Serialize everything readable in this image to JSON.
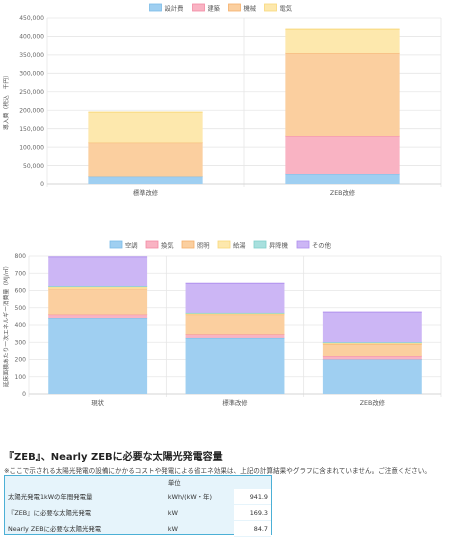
{
  "charts": [
    {
      "type": "bar",
      "stacked": true,
      "legend_position": "top",
      "grid": true,
      "categories": [
        "標準改修",
        "ZEB改修"
      ],
      "ylabel": "導入費（税込　千円）",
      "ylim": [
        0,
        450000
      ],
      "yticks": [
        "0",
        "50,000",
        "100,000",
        "150,000",
        "200,000",
        "250,000",
        "300,000",
        "350,000",
        "400,000",
        "450,000"
      ],
      "series": [
        {
          "name": "設計費",
          "values": [
            20000,
            27000
          ],
          "color": "#9fcff1",
          "border": "#7bbbe8"
        },
        {
          "name": "建築",
          "values": [
            0,
            103000
          ],
          "color": "#f9b3c3",
          "border": "#f28aa3"
        },
        {
          "name": "機械",
          "values": [
            92000,
            225000
          ],
          "color": "#fbcf9f",
          "border": "#f6b06a"
        },
        {
          "name": "電気",
          "values": [
            83000,
            65000
          ],
          "color": "#fde8ad",
          "border": "#f8d77a"
        }
      ]
    },
    {
      "type": "bar",
      "stacked": true,
      "legend_position": "top",
      "grid": true,
      "categories": [
        "現状",
        "標準改修",
        "ZEB改修"
      ],
      "ylabel": "延床面積あたり一次エネルギー消費量（MJ/㎡）",
      "ylim": [
        0,
        800
      ],
      "yticks": [
        "0",
        "100",
        "200",
        "300",
        "400",
        "500",
        "600",
        "700",
        "800"
      ],
      "series": [
        {
          "name": "空調",
          "values": [
            440,
            325,
            200
          ],
          "color": "#9fcff1",
          "border": "#7bbbe8"
        },
        {
          "name": "換気",
          "values": [
            20,
            20,
            20
          ],
          "color": "#f9b3c3",
          "border": "#f28aa3"
        },
        {
          "name": "照明",
          "values": [
            150,
            115,
            70
          ],
          "color": "#fbcf9f",
          "border": "#f6b06a"
        },
        {
          "name": "給湯",
          "values": [
            10,
            5,
            5
          ],
          "color": "#fde8ad",
          "border": "#f8d77a"
        },
        {
          "name": "昇降機",
          "values": [
            5,
            5,
            5
          ],
          "color": "#a8e0de",
          "border": "#7fcfcb"
        },
        {
          "name": "その他",
          "values": [
            170,
            172,
            175
          ],
          "color": "#ccb6f5",
          "border": "#b08fee"
        }
      ]
    }
  ],
  "solar": {
    "title": "『ZEB』、Nearly ZEBに必要な太陽光発電容量",
    "note": "※ここで示される太陽光発電の設備にかかるコストや発電による省エネ効果は、上記の計算結果やグラフに含まれていません。ご注意ください。",
    "unit_header": "単位",
    "rows": [
      {
        "label": "太陽光発電1kWの年間発電量",
        "unit": "kWh/(kW・年)",
        "value": "941.9"
      },
      {
        "label": "『ZEB』に必要な太陽光発電",
        "unit": "kW",
        "value": "169.3"
      },
      {
        "label": "Nearly ZEBに必要な太陽光発電",
        "unit": "kW",
        "value": "84.7"
      }
    ]
  }
}
